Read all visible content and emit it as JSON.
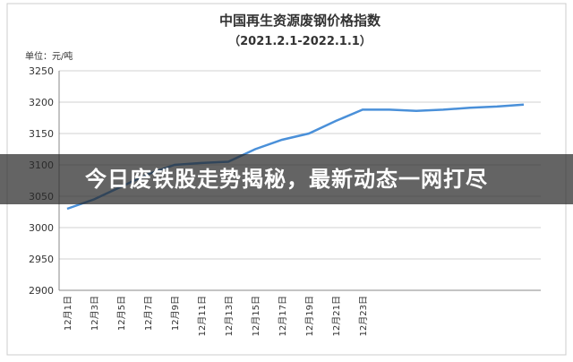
{
  "chart_data": {
    "type": "line",
    "title": "中国再生资源废钢价格指数",
    "subtitle": "（2021.2.1-2022.1.1）",
    "y_label": "单位：元/吨",
    "categories": [
      "12月1日",
      "12月3日",
      "12月5日",
      "12月7日",
      "12月9日",
      "12月11日",
      "12月13日",
      "12月15日",
      "12月17日",
      "12月19日",
      "12月21日",
      "12月23日",
      null,
      null,
      null,
      null,
      null,
      null
    ],
    "series": [
      {
        "name": "废钢价格指数",
        "color": "#4a90d9",
        "values": [
          3030,
          3045,
          3065,
          3085,
          3100,
          3103,
          3105,
          3125,
          3140,
          3150,
          3170,
          3188,
          3188,
          3186,
          3188,
          3191,
          3193,
          3196
        ]
      }
    ],
    "ylim": [
      2900,
      3250
    ],
    "yticks": [
      2900,
      2950,
      3000,
      3050,
      3100,
      3150,
      3200,
      3250
    ],
    "grid": true
  },
  "banner": "今日废铁股走势揭秘，最新动态一网打尽"
}
